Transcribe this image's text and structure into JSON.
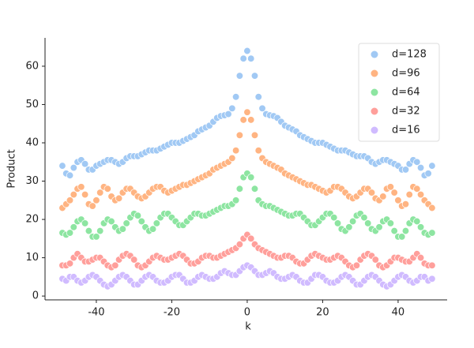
{
  "chart_data": {
    "type": "scatter",
    "xlabel": "k",
    "ylabel": "Product",
    "x": [
      -49,
      -48,
      -47,
      -46,
      -45,
      -44,
      -43,
      -42,
      -41,
      -40,
      -39,
      -38,
      -37,
      -36,
      -35,
      -34,
      -33,
      -32,
      -31,
      -30,
      -29,
      -28,
      -27,
      -26,
      -25,
      -24,
      -23,
      -22,
      -21,
      -20,
      -19,
      -18,
      -17,
      -16,
      -15,
      -14,
      -13,
      -12,
      -11,
      -10,
      -9,
      -8,
      -7,
      -6,
      -5,
      -4,
      -3,
      -2,
      -1,
      0,
      1,
      2,
      3,
      4,
      5,
      6,
      7,
      8,
      9,
      10,
      11,
      12,
      13,
      14,
      15,
      16,
      17,
      18,
      19,
      20,
      21,
      22,
      23,
      24,
      25,
      26,
      27,
      28,
      29,
      30,
      31,
      32,
      33,
      34,
      35,
      36,
      37,
      38,
      39,
      40,
      41,
      42,
      43,
      44,
      45,
      46,
      47,
      48,
      49
    ],
    "series": [
      {
        "name": "d=128",
        "color": "#a1c9f4",
        "values": [
          34,
          32,
          31.5,
          33.5,
          35,
          35.5,
          34.5,
          33,
          33,
          34,
          34.5,
          35,
          35.5,
          35.5,
          35,
          34.5,
          35,
          36,
          36.5,
          36.5,
          36.5,
          37,
          37.5,
          38,
          38,
          38,
          38.5,
          39,
          39.5,
          40,
          40,
          40,
          40.5,
          41,
          41.5,
          42,
          43,
          43.5,
          44,
          44.5,
          45.5,
          46.5,
          47,
          47.2,
          47.5,
          49,
          52,
          57.5,
          62,
          64,
          62,
          57.5,
          52,
          49,
          47.5,
          47.2,
          47,
          46.5,
          45.5,
          44.5,
          44,
          43.5,
          43,
          42,
          41.5,
          41,
          40.5,
          40,
          40,
          40,
          39.5,
          39,
          38.5,
          38,
          38,
          38,
          37.5,
          37,
          36.5,
          36.5,
          36.5,
          36,
          35,
          34.5,
          35,
          35.5,
          35.5,
          35,
          34.5,
          34,
          33,
          33,
          34.5,
          35.5,
          35,
          33.5,
          31.5,
          32,
          34
        ]
      },
      {
        "name": "d=96",
        "color": "#ffb482",
        "values": [
          23,
          24,
          25,
          26.5,
          28,
          28.5,
          26.5,
          24,
          23.5,
          25,
          27,
          28.5,
          28,
          26,
          25,
          25.5,
          27,
          28,
          28,
          27,
          26,
          25.5,
          26,
          27,
          28,
          28.5,
          28.5,
          27.5,
          27,
          27.5,
          28,
          28.5,
          29,
          29,
          29.5,
          30,
          30.5,
          31,
          31.5,
          32,
          33,
          33.5,
          34,
          34.5,
          35,
          36,
          38,
          42,
          46,
          48,
          46,
          42,
          38,
          36,
          35,
          34.5,
          34,
          33.5,
          33,
          32,
          31.5,
          31,
          30.5,
          30,
          29.5,
          29,
          29,
          28.5,
          28,
          27.5,
          27,
          27.5,
          28.5,
          28.5,
          28,
          27,
          26,
          25.5,
          26,
          27,
          28,
          28,
          27,
          25.5,
          25,
          26,
          28,
          28.5,
          27,
          25,
          23.5,
          24,
          26.5,
          28.5,
          28,
          26.5,
          25,
          24,
          23
        ]
      },
      {
        "name": "d=64",
        "color": "#8de5a1",
        "values": [
          16.5,
          16,
          16.5,
          18,
          19.5,
          20,
          19,
          17,
          15.5,
          15.5,
          17,
          19,
          20,
          19.5,
          18,
          17,
          17.5,
          19,
          20.5,
          21.5,
          21,
          19.5,
          18,
          17,
          17.5,
          19,
          20.5,
          21.5,
          21.5,
          20.5,
          19.5,
          18.5,
          18.5,
          19.5,
          20.5,
          21.5,
          21.5,
          21,
          21,
          21.5,
          22,
          22.5,
          23,
          23.5,
          23.5,
          24,
          25,
          28,
          31,
          32,
          31,
          28,
          25,
          24,
          23.5,
          23.5,
          23,
          22.5,
          22,
          21.5,
          21,
          21,
          21.5,
          21.5,
          20.5,
          19.5,
          18.5,
          18.5,
          19.5,
          20.5,
          21.5,
          21.5,
          20.5,
          19,
          17.5,
          17,
          18,
          19.5,
          21,
          21.5,
          20.5,
          19,
          17.5,
          17,
          18,
          19.5,
          20,
          19,
          17,
          15.5,
          15.5,
          17,
          19,
          20,
          19.5,
          18,
          16.5,
          16,
          16.5
        ]
      },
      {
        "name": "d=32",
        "color": "#ff9f9b",
        "values": [
          8,
          8,
          8.5,
          10,
          11,
          10,
          9,
          9,
          9.5,
          10,
          10,
          9,
          8,
          7.5,
          8,
          9.5,
          10.5,
          11,
          10.5,
          9.5,
          8,
          7.5,
          8,
          9,
          10,
          10.5,
          10,
          9.5,
          9.5,
          10,
          10.5,
          11,
          10.5,
          9.5,
          8.5,
          8.5,
          9,
          10,
          10.5,
          10.5,
          10,
          10,
          10.5,
          11,
          11.5,
          12,
          12.5,
          13.5,
          15,
          16,
          15,
          13.5,
          12.5,
          12,
          11.5,
          11,
          10.5,
          10,
          10,
          10.5,
          10.5,
          10,
          9,
          8.5,
          8.5,
          9.5,
          10.5,
          11,
          10.5,
          10,
          9.5,
          9.5,
          10,
          10.5,
          10,
          9,
          8,
          7.5,
          8,
          9.5,
          10.5,
          11,
          10.5,
          9.5,
          8,
          7.5,
          8,
          9,
          10,
          10,
          9.5,
          9,
          9,
          10,
          11,
          10,
          8.5,
          8,
          8
        ]
      },
      {
        "name": "d=16",
        "color": "#d0bbff",
        "values": [
          4.5,
          4,
          5,
          5,
          4,
          3.5,
          4,
          5,
          5.5,
          5,
          4,
          3,
          2.5,
          3,
          4,
          5,
          5.5,
          5,
          4,
          3,
          3,
          4,
          5,
          5.5,
          5,
          4,
          3.5,
          3.5,
          4,
          5,
          5.5,
          5.5,
          4.5,
          3.5,
          3.5,
          4,
          5,
          5.5,
          5,
          4.5,
          4.5,
          5,
          6,
          6.5,
          6,
          5.5,
          5.5,
          6.5,
          7.5,
          8,
          7.5,
          6.5,
          5.5,
          5.5,
          6,
          6.5,
          6,
          5,
          4.5,
          4.5,
          5,
          5.5,
          5,
          4,
          3.5,
          3.5,
          4.5,
          5.5,
          5.5,
          5,
          4,
          3.5,
          3.5,
          4,
          5,
          5.5,
          5,
          4,
          3,
          3,
          4,
          5,
          5.5,
          5,
          4,
          3,
          2.5,
          3,
          4,
          5,
          5.5,
          5,
          4,
          3.5,
          4,
          5,
          5,
          4,
          4.5
        ]
      }
    ],
    "xlim": [
      -53.6,
      53.0
    ],
    "xticks": [
      -40,
      -20,
      0,
      20,
      40
    ],
    "ylim": [
      -1,
      67.4
    ],
    "yticks": [
      0,
      10,
      20,
      30,
      40,
      50,
      60
    ],
    "legend": "upper right"
  }
}
